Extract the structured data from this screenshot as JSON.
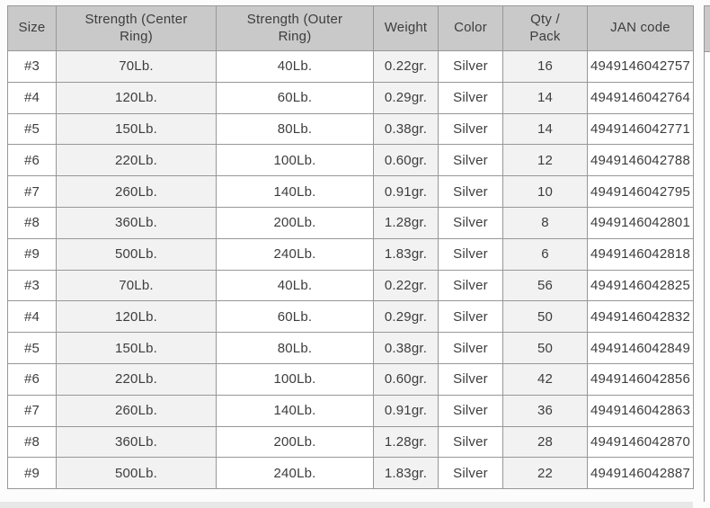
{
  "colors": {
    "header_bg": "#c9c9c9",
    "stripe_bg": "#f2f2f2",
    "cell_bg": "#ffffff",
    "border": "#979797",
    "text": "#3d3d3d",
    "below_strip": "#e8e8e8",
    "page_bg": "#fcfcfc"
  },
  "table": {
    "columns": [
      {
        "key": "size",
        "label": "Size",
        "shaded": false
      },
      {
        "key": "strength-center",
        "label": "Strength (Center\nRing)",
        "shaded": true
      },
      {
        "key": "strength-outer",
        "label": "Strength (Outer\nRing)",
        "shaded": false
      },
      {
        "key": "weight",
        "label": "Weight",
        "shaded": true
      },
      {
        "key": "color",
        "label": "Color",
        "shaded": false
      },
      {
        "key": "qty-pack",
        "label": "Qty /\nPack",
        "shaded": true
      },
      {
        "key": "jan-code",
        "label": "JAN code",
        "shaded": false
      }
    ],
    "rows": [
      [
        "#3",
        "70Lb.",
        "40Lb.",
        "0.22gr.",
        "Silver",
        "16",
        "4949146042757"
      ],
      [
        "#4",
        "120Lb.",
        "60Lb.",
        "0.29gr.",
        "Silver",
        "14",
        "4949146042764"
      ],
      [
        "#5",
        "150Lb.",
        "80Lb.",
        "0.38gr.",
        "Silver",
        "14",
        "4949146042771"
      ],
      [
        "#6",
        "220Lb.",
        "100Lb.",
        "0.60gr.",
        "Silver",
        "12",
        "4949146042788"
      ],
      [
        "#7",
        "260Lb.",
        "140Lb.",
        "0.91gr.",
        "Silver",
        "10",
        "4949146042795"
      ],
      [
        "#8",
        "360Lb.",
        "200Lb.",
        "1.28gr.",
        "Silver",
        "8",
        "4949146042801"
      ],
      [
        "#9",
        "500Lb.",
        "240Lb.",
        "1.83gr.",
        "Silver",
        "6",
        "4949146042818"
      ],
      [
        "#3",
        "70Lb.",
        "40Lb.",
        "0.22gr.",
        "Silver",
        "56",
        "4949146042825"
      ],
      [
        "#4",
        "120Lb.",
        "60Lb.",
        "0.29gr.",
        "Silver",
        "50",
        "4949146042832"
      ],
      [
        "#5",
        "150Lb.",
        "80Lb.",
        "0.38gr.",
        "Silver",
        "50",
        "4949146042849"
      ],
      [
        "#6",
        "220Lb.",
        "100Lb.",
        "0.60gr.",
        "Silver",
        "42",
        "4949146042856"
      ],
      [
        "#7",
        "260Lb.",
        "140Lb.",
        "0.91gr.",
        "Silver",
        "36",
        "4949146042863"
      ],
      [
        "#8",
        "360Lb.",
        "200Lb.",
        "1.28gr.",
        "Silver",
        "28",
        "4949146042870"
      ],
      [
        "#9",
        "500Lb.",
        "240Lb.",
        "1.83gr.",
        "Silver",
        "22",
        "4949146042887"
      ]
    ]
  }
}
